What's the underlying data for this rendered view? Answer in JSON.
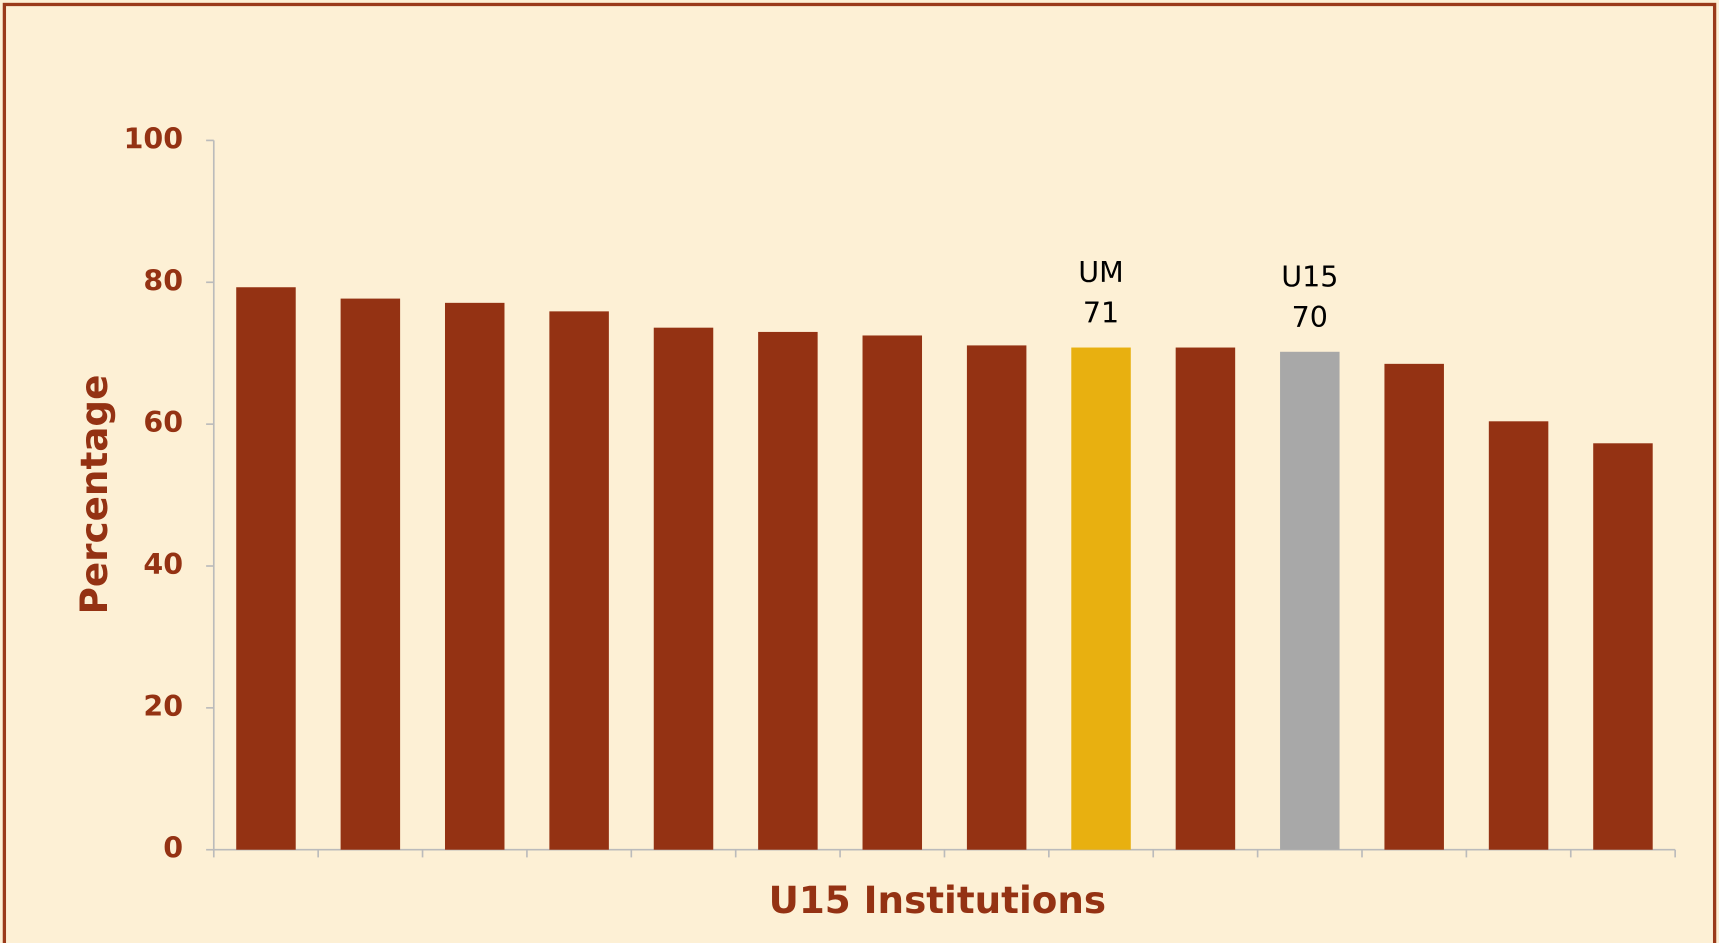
{
  "chart_data": {
    "type": "bar",
    "x_label": "U15 Institutions",
    "y_label": "Percentage",
    "categories": [
      null,
      null,
      null,
      null,
      null,
      null,
      null,
      null,
      null,
      null,
      null,
      null,
      null,
      null
    ],
    "values": [
      79.3,
      77.7,
      77.1,
      75.9,
      73.6,
      73.0,
      72.5,
      71.1,
      70.8,
      70.8,
      70.2,
      68.5,
      60.4,
      57.3
    ],
    "value_labels": [
      null,
      null,
      null,
      null,
      null,
      null,
      null,
      null,
      "71",
      null,
      "70",
      null,
      null,
      null
    ],
    "annotations": [
      null,
      null,
      null,
      null,
      null,
      null,
      null,
      null,
      "UM",
      null,
      "U15",
      null,
      null,
      null
    ],
    "colors": [
      "#943213",
      "#943213",
      "#943213",
      "#943213",
      "#943213",
      "#943213",
      "#943213",
      "#943213",
      "#e8b010",
      "#943213",
      "#a8a8a8",
      "#943213",
      "#943213",
      "#943213"
    ],
    "ylim": [
      0,
      100
    ],
    "yticks": [
      0,
      20,
      40,
      60,
      80,
      100
    ],
    "grid": false
  }
}
